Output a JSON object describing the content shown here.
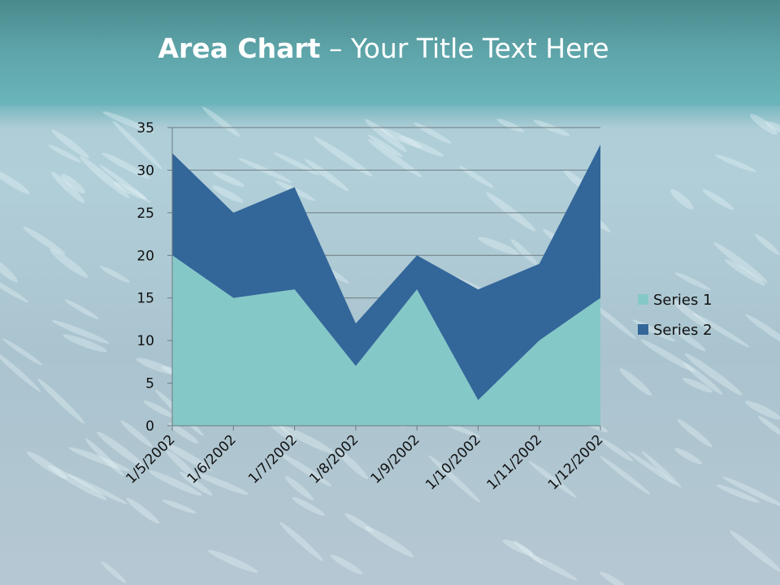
{
  "slide": {
    "title_bold": "Area Chart",
    "title_rest": " – Your Title Text Here"
  },
  "chart_data": {
    "type": "area",
    "stacked": true,
    "categories": [
      "1/5/2002",
      "1/6/2002",
      "1/7/2002",
      "1/8/2002",
      "1/9/2002",
      "1/10/2002",
      "1/11/2002",
      "1/12/2002"
    ],
    "series": [
      {
        "name": "Series 1",
        "values": [
          20,
          15,
          16,
          7,
          16,
          3,
          10,
          15
        ],
        "color": "#85c8c8"
      },
      {
        "name": "Series 2",
        "values": [
          12,
          10,
          12,
          5,
          4,
          13,
          9,
          18
        ],
        "color": "#336699"
      }
    ],
    "ylim": [
      0,
      35
    ],
    "yticks": [
      0,
      5,
      10,
      15,
      20,
      25,
      30,
      35
    ],
    "grid": true,
    "legend_position": "right"
  }
}
